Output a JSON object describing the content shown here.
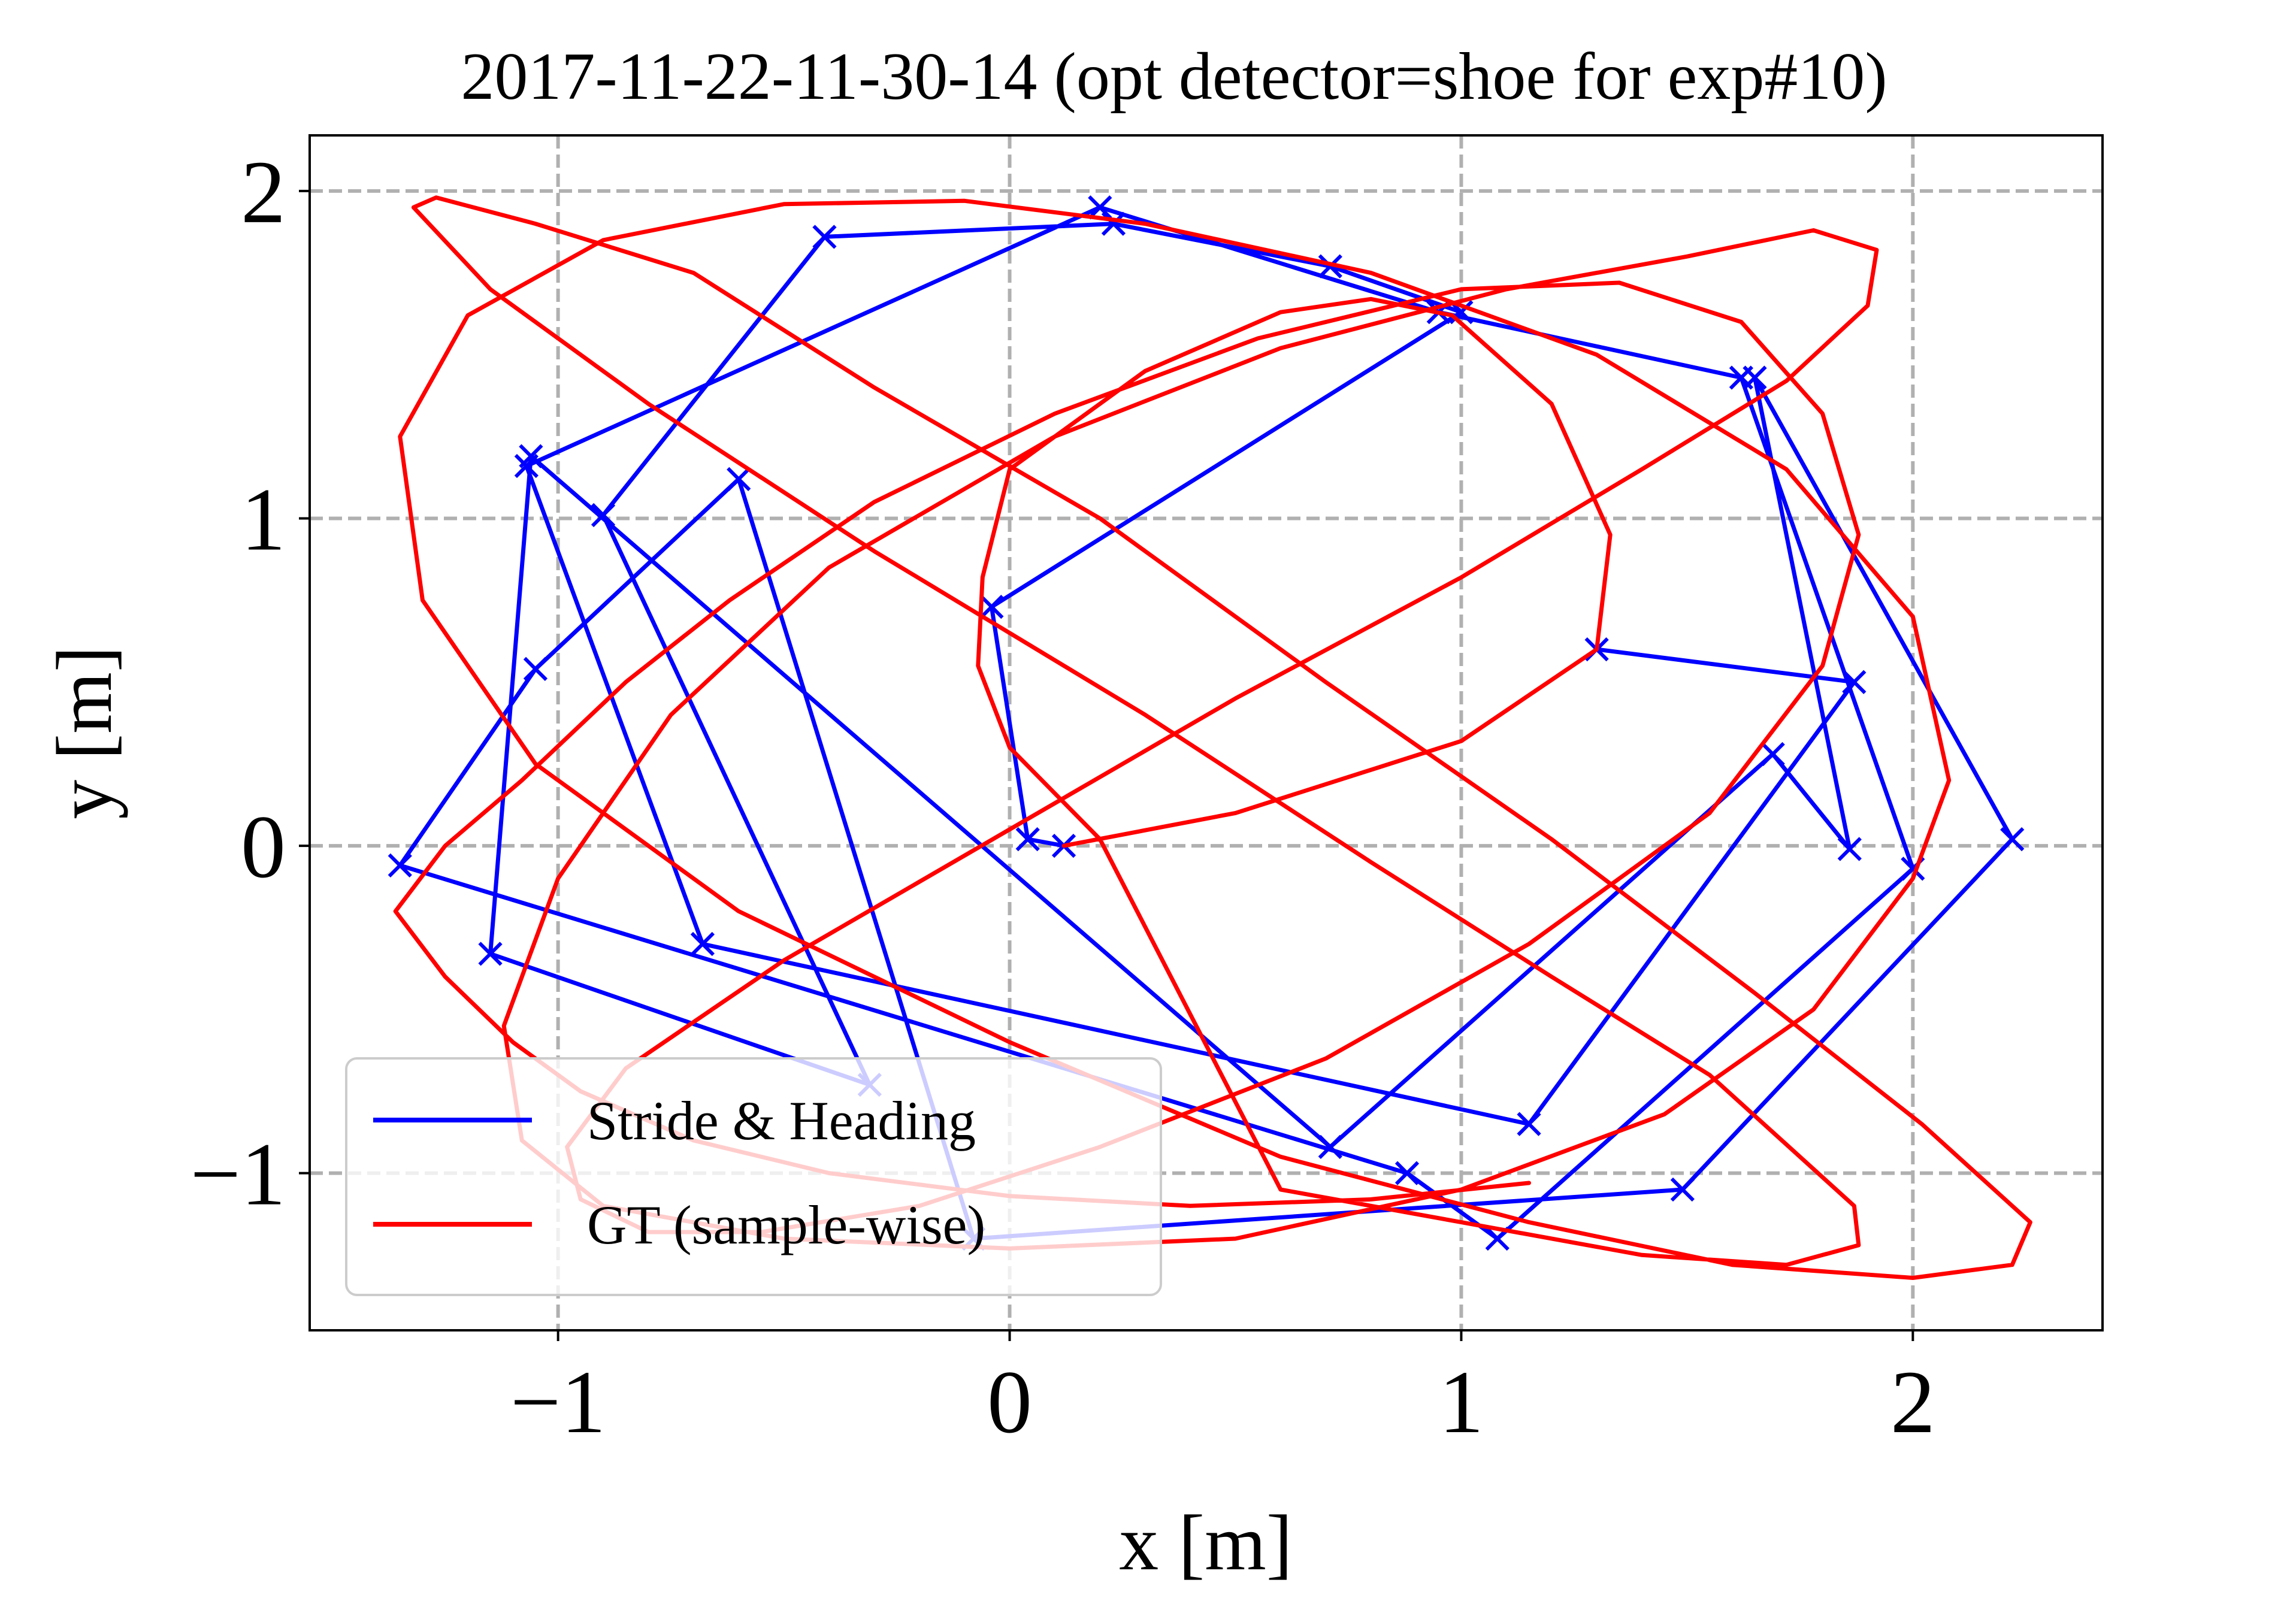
{
  "chart_data": {
    "type": "line",
    "title": "2017-11-22-11-30-14 (opt detector=shoe for exp#10)",
    "xlabel": "x [m]",
    "ylabel": "y [m]",
    "xlim": [
      -1.55,
      2.42
    ],
    "ylim": [
      -1.48,
      2.17
    ],
    "xticks": [
      -1,
      0,
      1,
      2
    ],
    "yticks": [
      -1,
      0,
      1,
      2
    ],
    "xtick_labels": [
      "−1",
      "0",
      "1",
      "2"
    ],
    "ytick_labels": [
      "−1",
      "0",
      "1",
      "2"
    ],
    "grid": true,
    "legend_position": "lower-left",
    "colors": {
      "stride": "#0000ff",
      "gt": "#ff0000",
      "grid": "#b0b0b0"
    },
    "series": [
      {
        "name": "Stride & Heading",
        "color": "#0000ff",
        "marker": "x",
        "x": [
          0.12,
          0.04,
          -0.04,
          1.0,
          0.71,
          0.23,
          -0.41,
          -0.9,
          -0.31,
          -1.15,
          -1.06,
          0.71,
          1.69,
          1.86,
          1.65,
          2.22,
          1.49,
          -0.08,
          -0.6,
          -1.05,
          -1.35,
          0.88,
          1.08,
          2.0,
          1.62,
          0.95,
          0.2,
          -1.07,
          -0.68,
          1.15,
          1.87,
          1.3
        ],
        "y": [
          0.0,
          0.02,
          0.73,
          1.63,
          1.77,
          1.9,
          1.86,
          1.01,
          -0.73,
          -0.33,
          1.19,
          -0.92,
          0.28,
          -0.01,
          1.43,
          0.02,
          -1.05,
          -1.2,
          1.12,
          0.54,
          -0.06,
          -1.0,
          -1.2,
          -0.07,
          1.43,
          1.63,
          1.95,
          1.16,
          -0.3,
          -0.85,
          0.5,
          0.6
        ]
      },
      {
        "name": "GT (sample-wise)",
        "color": "#ff0000",
        "x": [
          0.12,
          0.5,
          1.0,
          1.3,
          1.33,
          1.2,
          0.98,
          0.8,
          0.6,
          0.3,
          0.0,
          -0.06,
          -0.07,
          0.0,
          0.2,
          0.6,
          1.0,
          1.4,
          1.72,
          1.88,
          1.87,
          1.75,
          1.55,
          1.2,
          0.8,
          0.3,
          -0.3,
          -0.8,
          -1.15,
          -1.32,
          -1.27,
          -1.05,
          -0.7,
          -0.3,
          0.2,
          0.7,
          1.2,
          1.65,
          2.02,
          2.26,
          2.22,
          2.0,
          1.6,
          1.15,
          0.6,
          0.0,
          -0.6,
          -1.05,
          -1.3,
          -1.35,
          -1.2,
          -0.9,
          -0.5,
          -0.1,
          0.3,
          0.8,
          1.3,
          1.72,
          2.0,
          2.08,
          2.0,
          1.78,
          1.45,
          1.0,
          0.5,
          0.0,
          -0.5,
          -0.9,
          -1.08,
          -1.12,
          -1.0,
          -0.75,
          -0.4,
          0.1,
          0.6,
          1.1,
          1.5,
          1.78,
          1.92,
          1.9,
          1.72,
          1.4,
          1.0,
          0.5,
          0.0,
          -0.5,
          -0.85,
          -0.98,
          -0.95,
          -0.8,
          -0.55,
          -0.2,
          0.2,
          0.7,
          1.15,
          1.55,
          1.8,
          1.88,
          1.8,
          1.62,
          1.35,
          1.0,
          0.55,
          0.1,
          -0.3,
          -0.62,
          -0.85,
          -1.08,
          -1.25,
          -1.36,
          -1.25,
          -1.1,
          -0.95,
          -0.7,
          -0.4,
          0.0,
          0.4,
          0.8,
          1.15
        ],
        "y": [
          0.0,
          0.1,
          0.32,
          0.6,
          0.95,
          1.35,
          1.62,
          1.67,
          1.63,
          1.45,
          1.15,
          0.82,
          0.55,
          0.3,
          0.02,
          -1.05,
          -1.15,
          -1.25,
          -1.28,
          -1.22,
          -1.1,
          -0.95,
          -0.7,
          -0.4,
          -0.05,
          0.4,
          0.9,
          1.35,
          1.7,
          1.95,
          1.98,
          1.9,
          1.75,
          1.4,
          1.0,
          0.5,
          0.02,
          -0.45,
          -0.85,
          -1.15,
          -1.28,
          -1.32,
          -1.28,
          -1.15,
          -0.95,
          -0.6,
          -0.2,
          0.25,
          0.75,
          1.25,
          1.62,
          1.85,
          1.96,
          1.97,
          1.9,
          1.75,
          1.5,
          1.15,
          0.7,
          0.2,
          -0.1,
          -0.5,
          -0.82,
          -1.05,
          -1.2,
          -1.23,
          -1.2,
          -1.1,
          -0.9,
          -0.55,
          -0.1,
          0.4,
          0.85,
          1.25,
          1.52,
          1.7,
          1.8,
          1.88,
          1.82,
          1.65,
          1.42,
          1.15,
          0.82,
          0.45,
          0.05,
          -0.35,
          -0.68,
          -0.92,
          -1.08,
          -1.18,
          -1.18,
          -1.1,
          -0.92,
          -0.65,
          -0.3,
          0.1,
          0.55,
          0.95,
          1.32,
          1.6,
          1.72,
          1.7,
          1.55,
          1.32,
          1.05,
          0.75,
          0.5,
          0.2,
          0.0,
          -0.2,
          -0.4,
          -0.6,
          -0.75,
          -0.9,
          -1.0,
          -1.07,
          -1.1,
          -1.08,
          -1.03
        ]
      }
    ]
  }
}
